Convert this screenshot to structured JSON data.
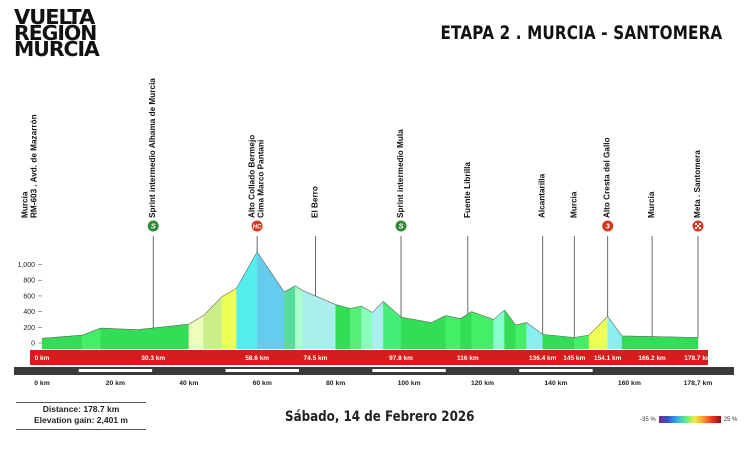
{
  "logo": {
    "line1": "VUELTA",
    "line2": "REGIÓN",
    "line3": "MURCIA"
  },
  "title": "ETAPA 2 . MURCIA - SANTOMERA",
  "stats": {
    "distance": "Distance: 178.7 km",
    "elevation": "Elevation gain: 2,401 m"
  },
  "date": "Sábado, 14 de Febrero 2026",
  "legend": {
    "min": "-35 %",
    "max": "25 %"
  },
  "chart_data": {
    "type": "area",
    "xlim": [
      0,
      178.7
    ],
    "ylim": [
      0,
      1200
    ],
    "y_ticks": [
      {
        "v": 0,
        "label": "0"
      },
      {
        "v": 200,
        "label": "200"
      },
      {
        "v": 400,
        "label": "400"
      },
      {
        "v": 600,
        "label": "600"
      },
      {
        "v": 800,
        "label": "800"
      },
      {
        "v": 1000,
        "label": "1,000"
      }
    ],
    "x_ticks": [
      {
        "v": 0,
        "label": "0 km"
      },
      {
        "v": 20,
        "label": "20 km"
      },
      {
        "v": 40,
        "label": "40 km"
      },
      {
        "v": 60,
        "label": "60 km"
      },
      {
        "v": 80,
        "label": "80 km"
      },
      {
        "v": 100,
        "label": "100 km"
      },
      {
        "v": 120,
        "label": "120 km"
      },
      {
        "v": 140,
        "label": "140 km"
      },
      {
        "v": 160,
        "label": "160 km"
      },
      {
        "v": 178.7,
        "label": "178,7 km"
      }
    ],
    "km_marks": [
      {
        "v": 0,
        "label": "0 km"
      },
      {
        "v": 30.3,
        "label": "30.3 km"
      },
      {
        "v": 58.6,
        "label": "58.6 km"
      },
      {
        "v": 74.5,
        "label": "74.5 km"
      },
      {
        "v": 97.8,
        "label": "97.8 km"
      },
      {
        "v": 116,
        "label": "116 km"
      },
      {
        "v": 136.4,
        "label": "136.4 km"
      },
      {
        "v": 145,
        "label": "145 km"
      },
      {
        "v": 154.1,
        "label": "154.1 km"
      },
      {
        "v": 166.2,
        "label": "166.2 km"
      },
      {
        "v": 178.7,
        "label": "178.7 km"
      }
    ],
    "places": [
      {
        "km": 0,
        "lines": [
          "Murcia",
          "RM-603 . Avd. de Mazarrón"
        ],
        "badge": ""
      },
      {
        "km": 30.3,
        "lines": [
          "Sprint intermedio Alhama de Murcia"
        ],
        "badge": "S"
      },
      {
        "km": 58.6,
        "lines": [
          "Alto Collado Bermejo",
          "Cima Marco Pantani"
        ],
        "badge": "HC"
      },
      {
        "km": 74.5,
        "lines": [
          "El Berro"
        ],
        "badge": ""
      },
      {
        "km": 97.8,
        "lines": [
          "Sprint intermedio Mula"
        ],
        "badge": "S"
      },
      {
        "km": 116,
        "lines": [
          "Fuente Librilla"
        ],
        "badge": ""
      },
      {
        "km": 136.4,
        "lines": [
          "Alcantarilla"
        ],
        "badge": ""
      },
      {
        "km": 145,
        "lines": [
          "Murcia"
        ],
        "badge": ""
      },
      {
        "km": 154.1,
        "lines": [
          "Alto Cresta del Gallo"
        ],
        "badge": "3"
      },
      {
        "km": 166.2,
        "lines": [
          "Murcia"
        ],
        "badge": ""
      },
      {
        "km": 178.7,
        "lines": [
          "Meta . Santomera"
        ],
        "badge": "finish"
      }
    ],
    "profile": [
      {
        "km": 0,
        "y": 60,
        "color": "#33dd55"
      },
      {
        "km": 11,
        "y": 100,
        "color": "#33dd55"
      },
      {
        "km": 16,
        "y": 190,
        "color": "#44ee66"
      },
      {
        "km": 26,
        "y": 170,
        "color": "#33dd55"
      },
      {
        "km": 40,
        "y": 240,
        "color": "#33dd55"
      },
      {
        "km": 44,
        "y": 350,
        "color": "#eeffbb"
      },
      {
        "km": 49,
        "y": 590,
        "color": "#ccee88"
      },
      {
        "km": 53,
        "y": 700,
        "color": "#eeff55"
      },
      {
        "km": 58.6,
        "y": 1160,
        "color": "#55eeee"
      },
      {
        "km": 66,
        "y": 650,
        "color": "#66ccee"
      },
      {
        "km": 69,
        "y": 730,
        "color": "#55dd99"
      },
      {
        "km": 71,
        "y": 670,
        "color": "#aaffcc"
      },
      {
        "km": 80,
        "y": 490,
        "color": "#aaeeee"
      },
      {
        "km": 84,
        "y": 440,
        "color": "#33dd55"
      },
      {
        "km": 87,
        "y": 470,
        "color": "#55ee77"
      },
      {
        "km": 90,
        "y": 390,
        "color": "#88ffbb"
      },
      {
        "km": 93,
        "y": 530,
        "color": "#aaeeee"
      },
      {
        "km": 97.8,
        "y": 330,
        "color": "#44ee77"
      },
      {
        "km": 106,
        "y": 260,
        "color": "#33dd55"
      },
      {
        "km": 110,
        "y": 350,
        "color": "#33dd55"
      },
      {
        "km": 114,
        "y": 310,
        "color": "#44ee66"
      },
      {
        "km": 117,
        "y": 400,
        "color": "#33dd55"
      },
      {
        "km": 123,
        "y": 300,
        "color": "#44ee66"
      },
      {
        "km": 126,
        "y": 420,
        "color": "#88ffcc"
      },
      {
        "km": 129,
        "y": 230,
        "color": "#33dd55"
      },
      {
        "km": 132,
        "y": 260,
        "color": "#44ee66"
      },
      {
        "km": 136.4,
        "y": 110,
        "color": "#88eeee"
      },
      {
        "km": 145,
        "y": 70,
        "color": "#33dd55"
      },
      {
        "km": 149,
        "y": 100,
        "color": "#44ee66"
      },
      {
        "km": 154.1,
        "y": 340,
        "color": "#eeff55"
      },
      {
        "km": 158,
        "y": 90,
        "color": "#88eeee"
      },
      {
        "km": 178.7,
        "y": 70,
        "color": "#33dd55"
      }
    ]
  }
}
